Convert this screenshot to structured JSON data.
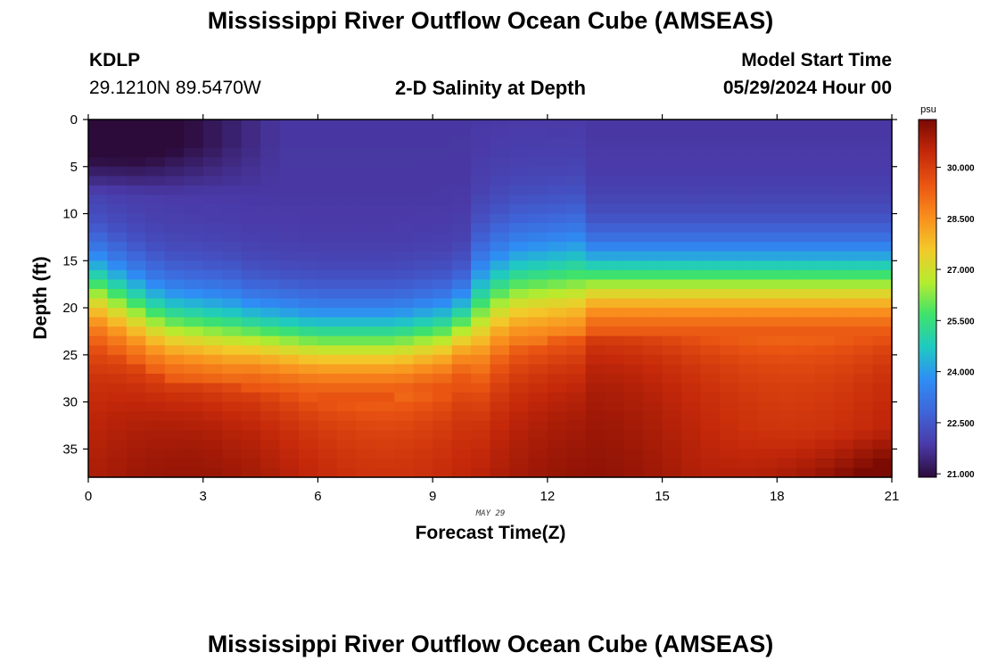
{
  "page": {
    "title": "Mississippi River Outflow Ocean Cube (AMSEAS)",
    "title_repeat": "Mississippi River Outflow Ocean Cube (AMSEAS)",
    "station": "KDLP",
    "coords": "29.1210N  89.5470W",
    "subtitle": "2-D Salinity at Depth",
    "model_label": "Model Start Time",
    "model_time": "05/29/2024 Hour 00"
  },
  "chart_data": {
    "type": "heatmap",
    "title": "2-D Salinity at Depth",
    "xlabel": "Forecast Time(Z)",
    "ylabel": "Depth (ft)",
    "x_annotation": "MAY 29",
    "xlim": [
      0,
      21
    ],
    "ylim": [
      0,
      38
    ],
    "y_inverted": true,
    "x_ticks": [
      0,
      3,
      6,
      9,
      12,
      15,
      18,
      21
    ],
    "y_ticks": [
      0,
      5,
      10,
      15,
      20,
      25,
      30,
      35
    ],
    "colorbar": {
      "unit": "psu",
      "range": [
        20.9,
        31.4
      ],
      "ticks": [
        "21.000",
        "22.500",
        "24.000",
        "25.500",
        "27.000",
        "28.500",
        "30.000"
      ],
      "colors": [
        "#2c0b3a",
        "#4a3aa8",
        "#3f65d8",
        "#2f8df5",
        "#1fc9c2",
        "#3ee26c",
        "#b6ec2e",
        "#f3c92a",
        "#f98e1e",
        "#ea5512",
        "#c4280a",
        "#7a0a03"
      ]
    },
    "halocline_depth_ft": [
      {
        "t": 0,
        "depth": 17.5
      },
      {
        "t": 2,
        "depth": 21.5
      },
      {
        "t": 4,
        "depth": 22.5
      },
      {
        "t": 6,
        "depth": 23.5
      },
      {
        "t": 8,
        "depth": 23.5
      },
      {
        "t": 9.5,
        "depth": 22.5
      },
      {
        "t": 11,
        "depth": 18
      },
      {
        "t": 12,
        "depth": 17.5
      },
      {
        "t": 13,
        "depth": 17
      },
      {
        "t": 15,
        "depth": 17
      },
      {
        "t": 18,
        "depth": 17
      },
      {
        "t": 21,
        "depth": 17
      }
    ],
    "surface_salinity_psu": 21.8,
    "bottom_salinity_psu": 30.3,
    "freshest_region": {
      "t_max": 4,
      "depth_max": 7,
      "salinity": 20.9
    }
  }
}
